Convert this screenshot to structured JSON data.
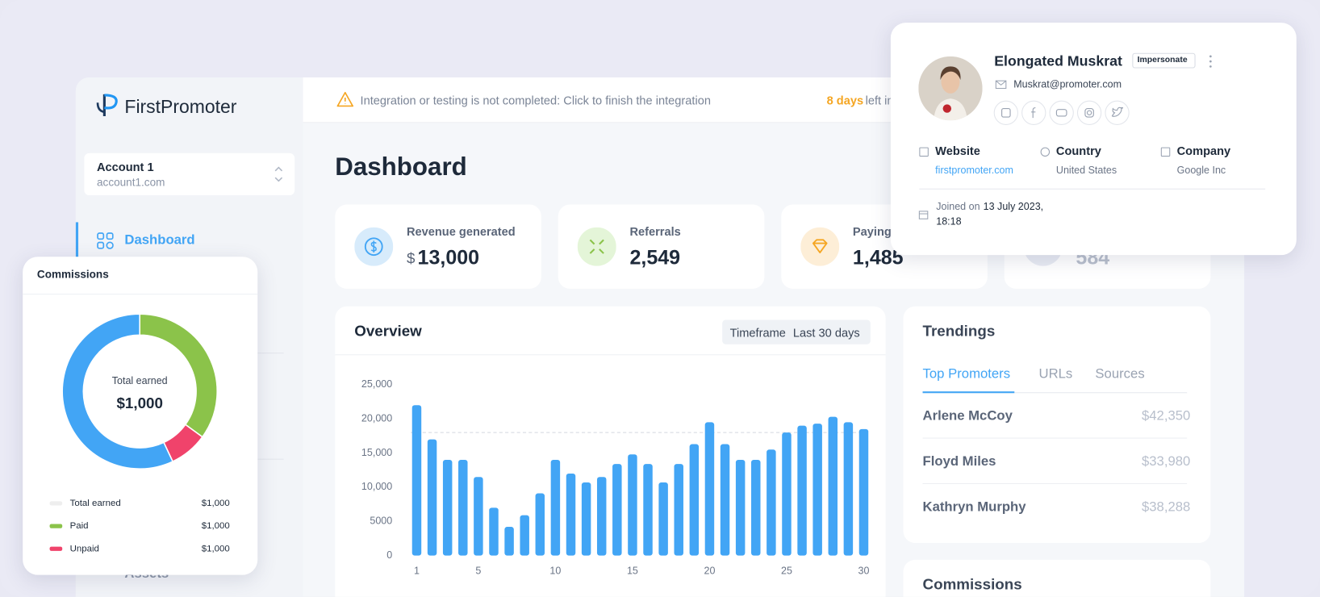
{
  "sidebar": {
    "logo": "FirstPromoter",
    "account": {
      "name": "Account 1",
      "domain": "account1.com"
    },
    "nav": [
      "Dashboard",
      "Assets"
    ]
  },
  "banner": {
    "message": "Integration or testing is not completed: Click to finish the integration",
    "days": "8 days",
    "suffix": "left in"
  },
  "title": "Dashboard",
  "stats": [
    {
      "label": "Revenue generated",
      "currency": "$",
      "value": "13,000"
    },
    {
      "label": "Referrals",
      "value": "2,549"
    },
    {
      "label": "Paying",
      "value": "1,485"
    },
    {
      "value": "584"
    }
  ],
  "overview": {
    "title": "Overview",
    "timeframe_label": "Timeframe",
    "timeframe": "Last 30 days"
  },
  "trendings": {
    "title": "Trendings",
    "tabs": [
      "Top Promoters",
      "URLs",
      "Sources"
    ],
    "rows": [
      [
        "Arlene McCoy",
        "$42,350"
      ],
      [
        "Floyd Miles",
        "$33,980"
      ],
      [
        "Kathryn Murphy",
        "$38,288"
      ]
    ]
  },
  "commissions_title": "Commissions",
  "profile": {
    "name": "Elongated Muskrat",
    "badge": "Impersonate",
    "email": "Muskrat@promoter.com",
    "fields": [
      {
        "label": "Website",
        "value": "firstpromoter.com"
      },
      {
        "label": "Country",
        "value": "United States"
      },
      {
        "label": "Company",
        "value": "Google Inc"
      }
    ],
    "joined_prefix": "Joined on",
    "joined_date": "13 July 2023,",
    "joined_time": "18:18"
  },
  "chart_data": [
    {
      "type": "bar",
      "categories": [
        1,
        null,
        null,
        null,
        5,
        null,
        null,
        null,
        null,
        10,
        null,
        null,
        null,
        null,
        15,
        null,
        null,
        null,
        null,
        20,
        null,
        null,
        null,
        null,
        25,
        null,
        null,
        null,
        null,
        30
      ],
      "values": [
        22000,
        17000,
        14000,
        14000,
        11500,
        7000,
        4200,
        5900,
        9100,
        14000,
        12000,
        10700,
        11500,
        13400,
        14800,
        13400,
        10700,
        13400,
        16300,
        19500,
        16300,
        14000,
        14000,
        15500,
        18000,
        19000,
        19300,
        20300,
        19500,
        18500
      ],
      "color": "#42a5f5",
      "reference_line": 18000,
      "ylim": [
        0,
        25000
      ],
      "yticks": [
        0,
        5000,
        {
          "value": 10000,
          "label": "10,000"
        },
        {
          "value": 15000,
          "label": "15,000"
        },
        {
          "value": 20000,
          "label": "20,000"
        },
        {
          "value": 25000,
          "label": "25,000"
        }
      ]
    },
    {
      "type": "donut",
      "title": "Commissions",
      "center_label": "Total earned",
      "center_value": "$1,000",
      "values": [
        35,
        8,
        57
      ],
      "colors": [
        "#8bc34a",
        "#f0436b",
        "#42a5f5"
      ],
      "legend": [
        {
          "name": "Total earned",
          "color": "#eeeeee",
          "value_label": "$1,000"
        },
        {
          "name": "Paid",
          "color": "#8bc34a",
          "value_label": "$1,000"
        },
        {
          "name": "Unpaid",
          "color": "#f0436b",
          "value_label": "$1,000"
        }
      ]
    }
  ]
}
